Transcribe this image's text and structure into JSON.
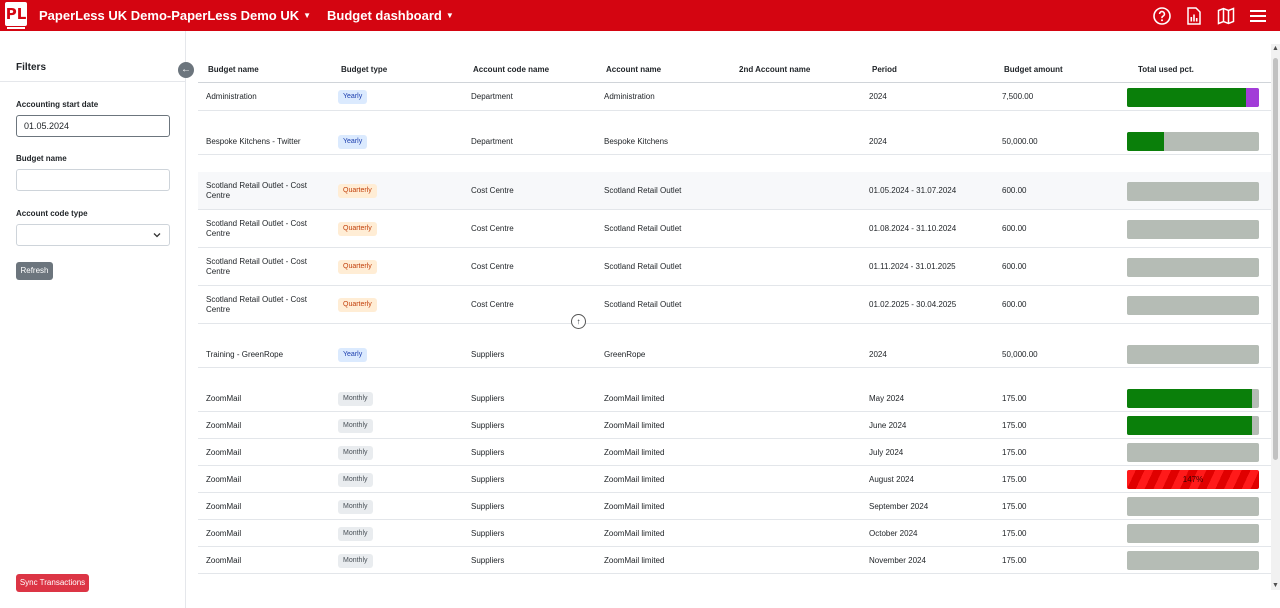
{
  "header": {
    "logo_text": "PL",
    "org_menu": "PaperLess UK Demo-PaperLess Demo UK",
    "page_menu": "Budget dashboard",
    "icons": [
      "help-icon",
      "report-icon",
      "map-icon",
      "hamburger-menu-icon"
    ]
  },
  "sidebar": {
    "title": "Filters",
    "accounting_start_date_label": "Accounting start date",
    "accounting_start_date_value": "01.05.2024",
    "budget_name_label": "Budget name",
    "budget_name_value": "",
    "account_code_type_label": "Account code type",
    "account_code_type_value": "",
    "refresh_label": "Refresh",
    "sync_label": "Sync Transactions"
  },
  "table": {
    "columns": [
      "Budget name",
      "Budget type",
      "Account code name",
      "Account name",
      "2nd Account name",
      "Period",
      "Budget amount",
      "Total used pct."
    ],
    "rows": [
      {
        "budget_name": "Administration",
        "type": "Yearly",
        "account_code": "Department",
        "account": "Administration",
        "account2": "",
        "period": "2024",
        "amount": "7,500.00",
        "used_pct": 96,
        "over_pct": 10,
        "label": ""
      },
      {
        "budget_name": "Bespoke Kitchens - Twitter",
        "type": "Yearly",
        "account_code": "Department",
        "account": "Bespoke Kitchens",
        "account2": "",
        "period": "2024",
        "amount": "50,000.00",
        "used_pct": 28,
        "over_pct": 0,
        "label": ""
      },
      {
        "budget_name": "Scotland Retail Outlet - Cost Centre",
        "type": "Quarterly",
        "account_code": "Cost Centre",
        "account": "Scotland Retail Outlet",
        "account2": "",
        "period": "01.05.2024 - 31.07.2024",
        "amount": "600.00",
        "used_pct": 0,
        "over_pct": 0,
        "label": ""
      },
      {
        "budget_name": "Scotland Retail Outlet - Cost Centre",
        "type": "Quarterly",
        "account_code": "Cost Centre",
        "account": "Scotland Retail Outlet",
        "account2": "",
        "period": "01.08.2024 - 31.10.2024",
        "amount": "600.00",
        "used_pct": 0,
        "over_pct": 0,
        "label": ""
      },
      {
        "budget_name": "Scotland Retail Outlet - Cost Centre",
        "type": "Quarterly",
        "account_code": "Cost Centre",
        "account": "Scotland Retail Outlet",
        "account2": "",
        "period": "01.11.2024 - 31.01.2025",
        "amount": "600.00",
        "used_pct": 0,
        "over_pct": 0,
        "label": ""
      },
      {
        "budget_name": "Scotland Retail Outlet - Cost Centre",
        "type": "Quarterly",
        "account_code": "Cost Centre",
        "account": "Scotland Retail Outlet",
        "account2": "",
        "period": "01.02.2025 - 30.04.2025",
        "amount": "600.00",
        "used_pct": 0,
        "over_pct": 0,
        "label": ""
      },
      {
        "budget_name": "Training - GreenRope",
        "type": "Yearly",
        "account_code": "Suppliers",
        "account": "GreenRope",
        "account2": "",
        "period": "2024",
        "amount": "50,000.00",
        "used_pct": 0,
        "over_pct": 0,
        "label": ""
      },
      {
        "budget_name": "ZoomMail",
        "type": "Monthly",
        "account_code": "Suppliers",
        "account": "ZoomMail limited",
        "account2": "",
        "period": "May 2024",
        "amount": "175.00",
        "used_pct": 95,
        "over_pct": 0,
        "label": ""
      },
      {
        "budget_name": "ZoomMail",
        "type": "Monthly",
        "account_code": "Suppliers",
        "account": "ZoomMail limited",
        "account2": "",
        "period": "June 2024",
        "amount": "175.00",
        "used_pct": 95,
        "over_pct": 0,
        "label": ""
      },
      {
        "budget_name": "ZoomMail",
        "type": "Monthly",
        "account_code": "Suppliers",
        "account": "ZoomMail limited",
        "account2": "",
        "period": "July 2024",
        "amount": "175.00",
        "used_pct": 0,
        "over_pct": 0,
        "label": ""
      },
      {
        "budget_name": "ZoomMail",
        "type": "Monthly",
        "account_code": "Suppliers",
        "account": "ZoomMail limited",
        "account2": "",
        "period": "August 2024",
        "amount": "175.00",
        "used_pct": 147,
        "over_pct": 0,
        "label": "147%"
      },
      {
        "budget_name": "ZoomMail",
        "type": "Monthly",
        "account_code": "Suppliers",
        "account": "ZoomMail limited",
        "account2": "",
        "period": "September 2024",
        "amount": "175.00",
        "used_pct": 0,
        "over_pct": 0,
        "label": ""
      },
      {
        "budget_name": "ZoomMail",
        "type": "Monthly",
        "account_code": "Suppliers",
        "account": "ZoomMail limited",
        "account2": "",
        "period": "October 2024",
        "amount": "175.00",
        "used_pct": 0,
        "over_pct": 0,
        "label": ""
      },
      {
        "budget_name": "ZoomMail",
        "type": "Monthly",
        "account_code": "Suppliers",
        "account": "ZoomMail limited",
        "account2": "",
        "period": "November 2024",
        "amount": "175.00",
        "used_pct": 0,
        "over_pct": 0,
        "label": ""
      }
    ]
  }
}
